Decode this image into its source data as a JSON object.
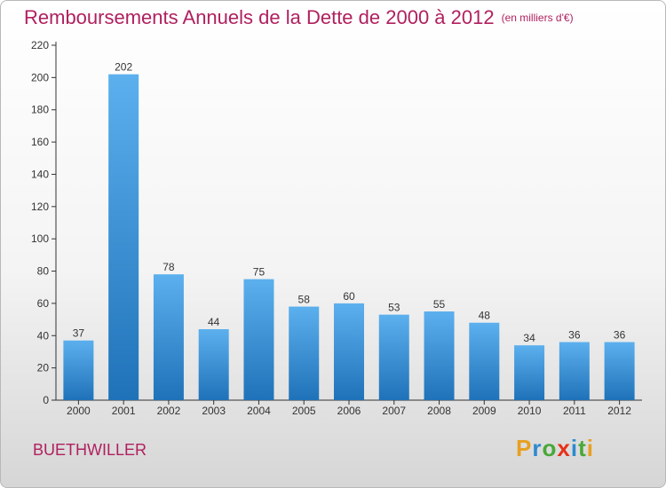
{
  "chart_data": {
    "type": "bar",
    "title": "Remboursements Annuels de la Dette de 2000 à 2012",
    "subtitle": "(en milliers d'€)",
    "categories": [
      "2000",
      "2001",
      "2002",
      "2003",
      "2004",
      "2005",
      "2006",
      "2007",
      "2008",
      "2009",
      "2010",
      "2011",
      "2012"
    ],
    "values": [
      37,
      202,
      78,
      44,
      75,
      58,
      60,
      53,
      55,
      48,
      34,
      36,
      36
    ],
    "ylim": [
      0,
      220
    ],
    "yticks": [
      0,
      20,
      40,
      60,
      80,
      100,
      120,
      140,
      160,
      180,
      200,
      220
    ],
    "xlabel": "",
    "ylabel": "",
    "legend": "none",
    "grid": false
  },
  "commune": "BUETHWILLER",
  "logo": {
    "text": "Proxiti",
    "letters": [
      "P",
      "r",
      "o",
      "x",
      "i",
      "t",
      "i"
    ],
    "colors": [
      "#e8a020",
      "#2d8ad0",
      "#48a838",
      "#e83018",
      "#2d8ad0",
      "#48a838",
      "#e8a020"
    ]
  },
  "colors": {
    "title": "#b0205f",
    "bar_top": "#5cb0ee",
    "bar_bottom": "#1f72b8",
    "axis": "#333333"
  }
}
